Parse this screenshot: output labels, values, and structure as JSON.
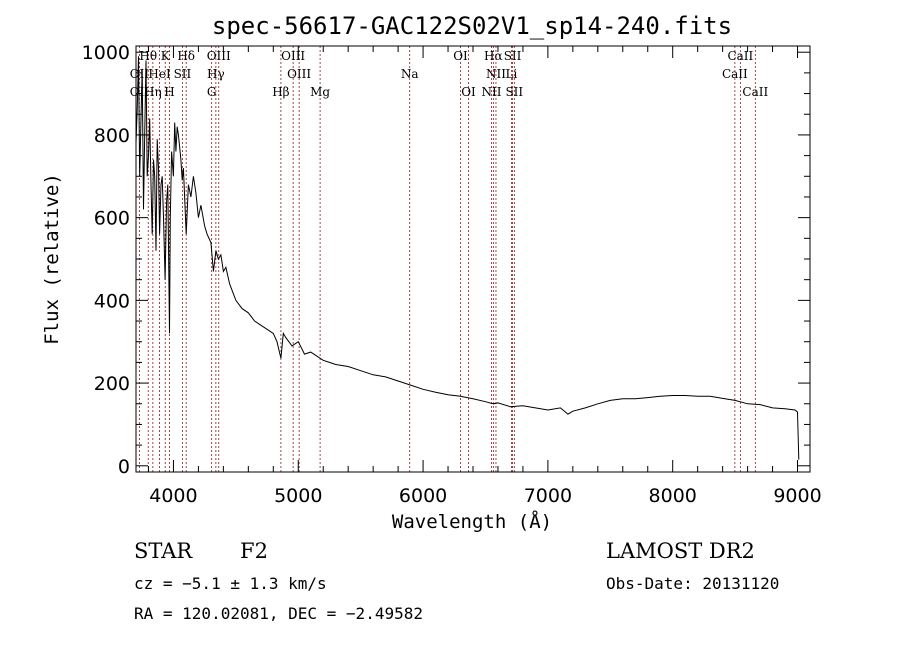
{
  "chart_data": {
    "type": "line",
    "title": "spec-56617-GAC122S02V1_sp14-240.fits",
    "xlabel": "Wavelength (Å)",
    "ylabel": "Flux (relative)",
    "xlim": [
      3700,
      9100
    ],
    "ylim": [
      -15,
      1015
    ],
    "xticks": [
      {
        "value": 4000,
        "label": "4000"
      },
      {
        "value": 5000,
        "label": "5000"
      },
      {
        "value": 6000,
        "label": "6000"
      },
      {
        "value": 7000,
        "label": "7000"
      },
      {
        "value": 8000,
        "label": "8000"
      },
      {
        "value": 9000,
        "label": "9000"
      }
    ],
    "yticks": [
      {
        "value": 0,
        "label": "0"
      },
      {
        "value": 200,
        "label": "200"
      },
      {
        "value": 400,
        "label": "400"
      },
      {
        "value": 600,
        "label": "600"
      },
      {
        "value": 800,
        "label": "800"
      },
      {
        "value": 1000,
        "label": "1000"
      }
    ],
    "grid": false,
    "legend": "none",
    "line_color": "#000000",
    "marker_color": "#8b1a1a",
    "spectrum": {
      "x": [
        3700,
        3710,
        3720,
        3730,
        3740,
        3750,
        3760,
        3770,
        3780,
        3790,
        3800,
        3810,
        3820,
        3830,
        3840,
        3850,
        3860,
        3870,
        3880,
        3889,
        3900,
        3910,
        3920,
        3933,
        3945,
        3955,
        3968,
        3975,
        3985,
        4000,
        4010,
        4020,
        4030,
        4040,
        4050,
        4060,
        4070,
        4080,
        4102,
        4120,
        4140,
        4160,
        4180,
        4200,
        4220,
        4250,
        4270,
        4300,
        4320,
        4340,
        4360,
        4380,
        4400,
        4420,
        4450,
        4500,
        4550,
        4600,
        4650,
        4700,
        4750,
        4800,
        4830,
        4861,
        4880,
        4900,
        4950,
        5000,
        5050,
        5100,
        5150,
        5200,
        5250,
        5300,
        5400,
        5500,
        5600,
        5700,
        5800,
        5900,
        6000,
        6100,
        6200,
        6300,
        6400,
        6500,
        6563,
        6600,
        6700,
        6800,
        6900,
        7000,
        7100,
        7160,
        7200,
        7300,
        7400,
        7500,
        7600,
        7700,
        7800,
        7900,
        8000,
        8100,
        8200,
        8300,
        8400,
        8500,
        8600,
        8700,
        8800,
        8900,
        8980,
        9000,
        9010
      ],
      "y": [
        780,
        860,
        990,
        700,
        840,
        960,
        620,
        800,
        980,
        700,
        750,
        840,
        680,
        560,
        740,
        700,
        520,
        790,
        720,
        560,
        680,
        700,
        600,
        450,
        640,
        680,
        320,
        600,
        760,
        700,
        830,
        760,
        820,
        800,
        770,
        740,
        690,
        720,
        560,
        680,
        650,
        700,
        660,
        600,
        630,
        580,
        560,
        540,
        470,
        520,
        500,
        510,
        470,
        480,
        440,
        400,
        380,
        370,
        350,
        340,
        330,
        320,
        300,
        260,
        320,
        310,
        290,
        300,
        270,
        275,
        265,
        255,
        250,
        245,
        240,
        230,
        220,
        215,
        205,
        195,
        185,
        178,
        172,
        168,
        162,
        155,
        150,
        152,
        143,
        145,
        140,
        135,
        140,
        125,
        132,
        140,
        150,
        158,
        162,
        162,
        165,
        168,
        170,
        170,
        168,
        168,
        163,
        158,
        150,
        148,
        140,
        138,
        135,
        130,
        15
      ]
    },
    "spectral_lines": [
      {
        "name": "Hθ",
        "wavelength": 3798,
        "row": 0
      },
      {
        "name": "K",
        "wavelength": 3934,
        "row": 0
      },
      {
        "name": "Hδ",
        "wavelength": 4102,
        "row": 0
      },
      {
        "name": "OIII",
        "wavelength": 4363,
        "row": 0
      },
      {
        "name": "OIII",
        "wavelength": 4959,
        "row": 0
      },
      {
        "name": "OI",
        "wavelength": 6300,
        "row": 0
      },
      {
        "name": "Hα",
        "wavelength": 6563,
        "row": 0
      },
      {
        "name": "SII",
        "wavelength": 6717,
        "row": 0
      },
      {
        "name": "CaII",
        "wavelength": 8542,
        "row": 0
      },
      {
        "name": "OII",
        "wavelength": 3727,
        "row": 1
      },
      {
        "name": "HeI",
        "wavelength": 3889,
        "row": 1
      },
      {
        "name": "SII",
        "wavelength": 4072,
        "row": 1
      },
      {
        "name": "Hγ",
        "wavelength": 4340,
        "row": 1
      },
      {
        "name": "OIII",
        "wavelength": 5007,
        "row": 1
      },
      {
        "name": "Na",
        "wavelength": 5893,
        "row": 1
      },
      {
        "name": "NII",
        "wavelength": 6584,
        "row": 1
      },
      {
        "name": "Li",
        "wavelength": 6708,
        "row": 1
      },
      {
        "name": "CaII",
        "wavelength": 8498,
        "row": 1
      },
      {
        "name": "OII",
        "wavelength": 3727,
        "row": 2
      },
      {
        "name": "Hη",
        "wavelength": 3835,
        "row": 2
      },
      {
        "name": "H",
        "wavelength": 3968,
        "row": 2
      },
      {
        "name": "G",
        "wavelength": 4306,
        "row": 2
      },
      {
        "name": "Hβ",
        "wavelength": 4861,
        "row": 2
      },
      {
        "name": "Mg",
        "wavelength": 5175,
        "row": 2
      },
      {
        "name": "OI",
        "wavelength": 6364,
        "row": 2
      },
      {
        "name": "NII",
        "wavelength": 6548,
        "row": 2
      },
      {
        "name": "SII",
        "wavelength": 6731,
        "row": 2
      },
      {
        "name": "CaII",
        "wavelength": 8662,
        "row": 2
      }
    ]
  },
  "info": {
    "object_class": "STAR",
    "subclass": "F2",
    "survey": "LAMOST DR2",
    "redshift": "cz = −5.1 ± 1.3 km/s",
    "obs_date": "Obs-Date: 20131120",
    "coords": "RA = 120.02081, DEC =  −2.49582"
  }
}
